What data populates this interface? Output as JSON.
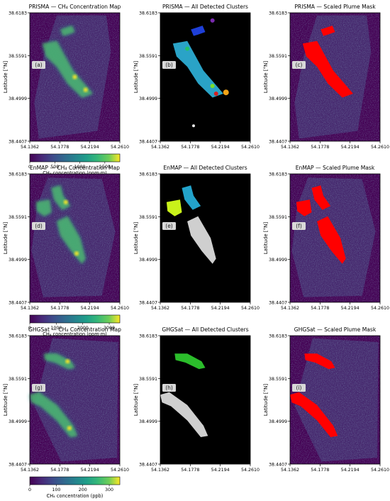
{
  "rows": [
    {
      "sensor": "PRISMA",
      "colorbar": {
        "label": "CH₄ concentration (ppm·m)",
        "ticks": [
          "0",
          "500",
          "1000",
          "1500"
        ],
        "max": 1800
      },
      "panels": [
        {
          "title": "PRISMA — CH₄ Concentration Map",
          "letter": "(a)",
          "kind": "concentration"
        },
        {
          "title": "PRISMA — All Detected Clusters",
          "letter": "(b)",
          "kind": "clusters"
        },
        {
          "title": "PRISMA — Scaled Plume Mask",
          "letter": "(c)",
          "kind": "mask"
        }
      ]
    },
    {
      "sensor": "EnMAP",
      "colorbar": {
        "label": "CH₄ concentration (ppm·m)",
        "ticks": [
          "0",
          "1000",
          "2000",
          "3000"
        ],
        "max": 3400
      },
      "panels": [
        {
          "title": "EnMAP — CH₄ Concentration Map",
          "letter": "(d)",
          "kind": "concentration"
        },
        {
          "title": "EnMAP — All Detected Clusters",
          "letter": "(e)",
          "kind": "clusters"
        },
        {
          "title": "EnMAP — Scaled Plume Mask",
          "letter": "(f)",
          "kind": "mask"
        }
      ]
    },
    {
      "sensor": "GHGSat",
      "colorbar": {
        "label": "CH₄ concentration (ppb)",
        "ticks": [
          "0",
          "100",
          "200",
          "300"
        ],
        "max": 340
      },
      "panels": [
        {
          "title": "GHGSat — CH₄ Concentration Map",
          "letter": "(g)",
          "kind": "concentration"
        },
        {
          "title": "GHGSat — All Detected Clusters",
          "letter": "(h)",
          "kind": "clusters"
        },
        {
          "title": "GHGSat — Scaled Plume Mask",
          "letter": "(i)",
          "kind": "mask"
        }
      ]
    }
  ],
  "axes": {
    "ylabel": "Latitude [°N]",
    "yticks": [
      "38.6183",
      "38.5591",
      "38.4999",
      "38.4407"
    ],
    "xticks": [
      "54.1362",
      "54.1778",
      "54.2194",
      "54.2610"
    ]
  },
  "colors": {
    "background": "#440154",
    "mask": "#ff0000",
    "clusters_background": "#000000"
  },
  "chart_data": [
    {
      "type": "heatmap",
      "title": "PRISMA — CH₄ Concentration Map",
      "ylabel": "Latitude [°N]",
      "colorbar_label": "CH₄ concentration (ppm·m)",
      "colorbar_range": [
        0,
        1800
      ],
      "colormap": "viridis",
      "xlim": [
        54.1362,
        54.261
      ],
      "ylim": [
        38.4407,
        38.6183
      ]
    },
    {
      "type": "heatmap",
      "title": "EnMAP — CH₄ Concentration Map",
      "ylabel": "Latitude [°N]",
      "colorbar_label": "CH₄ concentration (ppm·m)",
      "colorbar_range": [
        0,
        3400
      ],
      "colormap": "viridis",
      "xlim": [
        54.1362,
        54.261
      ],
      "ylim": [
        38.4407,
        38.6183
      ]
    },
    {
      "type": "heatmap",
      "title": "GHGSat — CH₄ Concentration Map",
      "ylabel": "Latitude [°N]",
      "colorbar_label": "CH₄ concentration (ppb)",
      "colorbar_range": [
        0,
        340
      ],
      "colormap": "viridis",
      "xlim": [
        54.1362,
        54.261
      ],
      "ylim": [
        38.4407,
        38.6183
      ]
    }
  ]
}
